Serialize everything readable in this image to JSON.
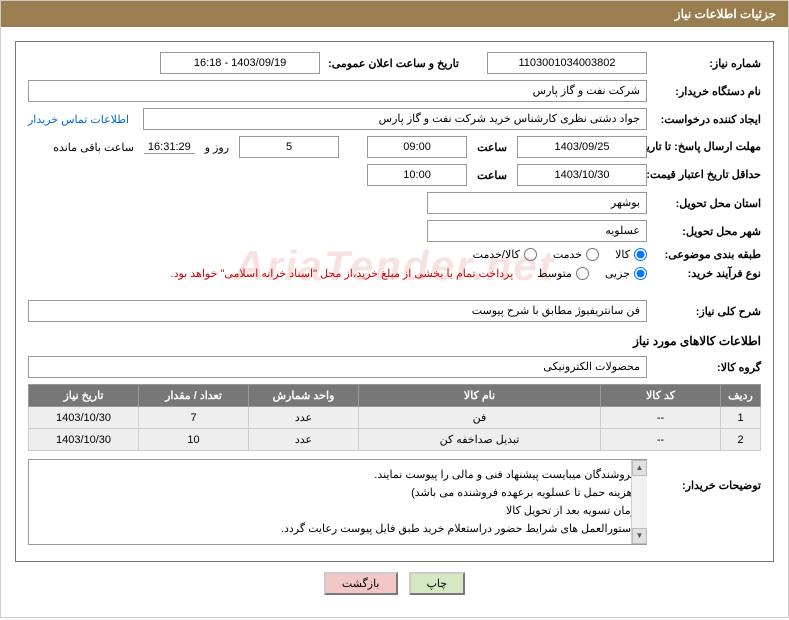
{
  "header": {
    "title": "جزئیات اطلاعات نیاز"
  },
  "fields": {
    "need_no_label": "شماره نیاز:",
    "need_no": "1103001034003802",
    "announce_dt_label": "تاریخ و ساعت اعلان عمومی:",
    "announce_dt": "1403/09/19 - 16:18",
    "buyer_org_label": "نام دستگاه خریدار:",
    "buyer_org": "شرکت نفت و گاز پارس",
    "creator_label": "ایجاد کننده درخواست:",
    "creator": "جواد دشتی نظری کارشناس خرید  شرکت نفت و گاز پارس",
    "buyer_contact_link": "اطلاعات تماس خریدار",
    "deadline_send_label": "مهلت ارسال پاسخ:  تا تاریخ:",
    "deadline_send_date": "1403/09/25",
    "time_label": "ساعت",
    "deadline_send_time": "09:00",
    "days_remaining": "5",
    "days_and_label": "روز و",
    "countdown": "16:31:29",
    "remaining_label": "ساعت باقی مانده",
    "min_valid_label": "حداقل تاریخ اعتبار قیمت: تا تاریخ:",
    "min_valid_date": "1403/10/30",
    "min_valid_time": "10:00",
    "province_label": "استان محل تحویل:",
    "province": "بوشهر",
    "city_label": "شهر محل تحویل:",
    "city": "عسلویه",
    "category_label": "طبقه بندی موضوعی:",
    "cat_opt_goods": "کالا",
    "cat_opt_service": "خدمت",
    "cat_opt_goods_service": "کالا/خدمت",
    "process_label": "نوع فرآیند خرید:",
    "proc_opt_partial": "جزیی",
    "proc_opt_medium": "متوسط",
    "process_note": "پرداخت تمام یا بخشی از مبلغ خرید،از محل \"اسناد خزانه اسلامی\" خواهد بود.",
    "overall_label": "شرح کلی نیاز:",
    "overall_desc": "فن سانتریفیوژ مطابق با شرح پیوست",
    "goods_section": "اطلاعات کالاهای مورد نیاز",
    "goods_group_label": "گروه کالا:",
    "goods_group": "محصولات الکترونیکی",
    "buyer_notes_label": "توضیحات خریدار:"
  },
  "table": {
    "headers": {
      "row": "ردیف",
      "code": "کد کالا",
      "name": "نام کالا",
      "unit": "واحد شمارش",
      "qty": "تعداد / مقدار",
      "date": "تاریخ نیاز"
    },
    "rows": [
      {
        "row": "1",
        "code": "--",
        "name": "فن",
        "unit": "عدد",
        "qty": "7",
        "date": "1403/10/30"
      },
      {
        "row": "2",
        "code": "--",
        "name": "تبدیل صداخفه کن",
        "unit": "عدد",
        "qty": "10",
        "date": "1403/10/30"
      }
    ],
    "col_widths": {
      "row": "40px",
      "code": "120px",
      "name": "auto",
      "unit": "110px",
      "qty": "110px",
      "date": "110px"
    }
  },
  "buyer_notes": [
    "فروشندگان میبایست پیشنهاد فنی و مالی را پیوست نمایند.",
    "(هزینه حمل تا عسلویه برعهده فروشنده می باشد)",
    "زمان تسویه بعد از تحویل کالا",
    "دستورالعمل های شرایط حضور دراستعلام خرید طبق فایل پیوست رعایت گردد."
  ],
  "buttons": {
    "print": "چاپ",
    "back": "بازگشت"
  },
  "watermark": "AriaTender.net",
  "styles": {
    "header_bg": "#9b7e4f",
    "header_fg": "#ffffff",
    "panel_border": "#777777",
    "box_border": "#999999",
    "th_bg": "#777777",
    "th_fg": "#ffffff",
    "td_bg": "#eeeeee",
    "link_color": "#0066cc",
    "note_color": "#cc0000",
    "btn_print_bg": "#d4e8c1",
    "btn_back_bg": "#f4c7c7"
  }
}
